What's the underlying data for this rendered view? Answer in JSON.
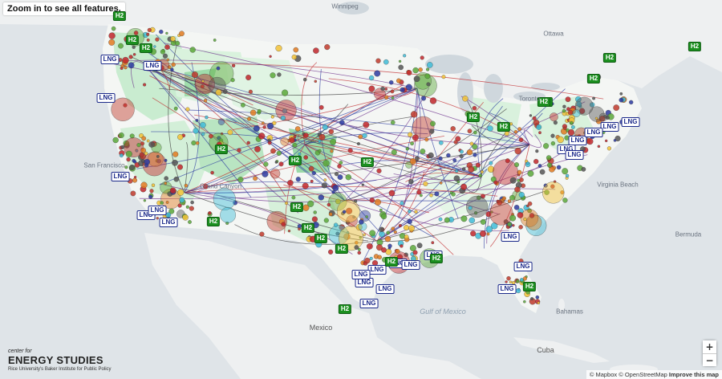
{
  "notice": "Zoom in to see all features.",
  "markers": {
    "lng_label": "LNG",
    "h2_label": "H2",
    "lng_count": 24,
    "h2_count": 22
  },
  "places": [
    {
      "name": "Winnipeg",
      "kind": "city"
    },
    {
      "name": "Ottawa",
      "kind": "city"
    },
    {
      "name": "Toronto",
      "kind": "city"
    },
    {
      "name": "San Francisco",
      "kind": "city"
    },
    {
      "name": "Grand Canyon",
      "kind": "city"
    },
    {
      "name": "Virginia Beach",
      "kind": "city"
    },
    {
      "name": "Bermuda",
      "kind": "city"
    },
    {
      "name": "Bahamas",
      "kind": "city"
    },
    {
      "name": "Mexico",
      "kind": "country"
    },
    {
      "name": "Cuba",
      "kind": "country"
    },
    {
      "name": "Gulf of Mexico",
      "kind": "water"
    }
  ],
  "legend_colors": {
    "gas": "#2b3aa0",
    "oil": "#c0262a",
    "coal": "#555555",
    "hydro": "#3fbcd7",
    "solar": "#f2c236",
    "wind": "#e07a20",
    "nuclear": "#c0392b",
    "biomass": "#5aa83a"
  },
  "zoom": {
    "in": "+",
    "out": "−"
  },
  "attribution": {
    "mapbox": "© Mapbox",
    "osm": "© OpenStreetMap",
    "improve": "Improve this map"
  },
  "logo": {
    "line1": "center for",
    "line2": "ENERGY STUDIES",
    "line3": "Rice University's Baker Institute for Public Policy"
  }
}
